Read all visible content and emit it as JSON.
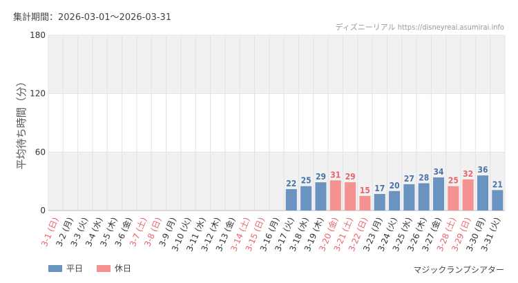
{
  "header": {
    "period": "集計期間：2026-03-01〜2026-03-31",
    "credit": "ディズニーリアル https://disneyreal.asumirai.info"
  },
  "area_name": "マジックランプシアター",
  "colors": {
    "weekday": "#6a93c1",
    "holiday": "#f49292",
    "weekday_label": "#4a74a8",
    "holiday_label": "#e8656a",
    "weekday_tick": "#333333",
    "holiday_tick": "#e8656a",
    "band": "#f1f1f1",
    "grid": "#e3e3e3"
  },
  "chart_data": {
    "type": "bar",
    "ylabel": "平均待ち時間（分）",
    "ylim": [
      0,
      180
    ],
    "yticks": [
      0,
      60,
      120,
      180
    ],
    "bands": [
      [
        120,
        180
      ],
      [
        0,
        60
      ]
    ],
    "grid": true,
    "legend": {
      "position": "bottom-left",
      "items": [
        {
          "label": "平日",
          "key": "weekday"
        },
        {
          "label": "休日",
          "key": "holiday"
        }
      ]
    },
    "categories": [
      "3-1 (日)",
      "3-2 (月)",
      "3-3 (火)",
      "3-4 (水)",
      "3-5 (木)",
      "3-6 (金)",
      "3-7 (土)",
      "3-8 (日)",
      "3-9 (月)",
      "3-10 (火)",
      "3-11 (水)",
      "3-12 (木)",
      "3-13 (金)",
      "3-14 (土)",
      "3-15 (日)",
      "3-16 (月)",
      "3-17 (火)",
      "3-18 (水)",
      "3-19 (木)",
      "3-20 (金)",
      "3-21 (土)",
      "3-22 (日)",
      "3-23 (月)",
      "3-24 (火)",
      "3-25 (水)",
      "3-26 (木)",
      "3-27 (金)",
      "3-28 (土)",
      "3-29 (日)",
      "3-30 (月)",
      "3-31 (火)"
    ],
    "day_type": [
      "holiday",
      "weekday",
      "weekday",
      "weekday",
      "weekday",
      "weekday",
      "holiday",
      "holiday",
      "weekday",
      "weekday",
      "weekday",
      "weekday",
      "weekday",
      "holiday",
      "holiday",
      "weekday",
      "weekday",
      "weekday",
      "weekday",
      "holiday",
      "holiday",
      "holiday",
      "weekday",
      "weekday",
      "weekday",
      "weekday",
      "weekday",
      "holiday",
      "holiday",
      "weekday",
      "weekday"
    ],
    "values": [
      null,
      null,
      null,
      null,
      null,
      null,
      null,
      null,
      null,
      null,
      null,
      null,
      null,
      null,
      null,
      null,
      22,
      25,
      29,
      31,
      29,
      15,
      17,
      20,
      27,
      28,
      34,
      25,
      32,
      36,
      21
    ]
  }
}
